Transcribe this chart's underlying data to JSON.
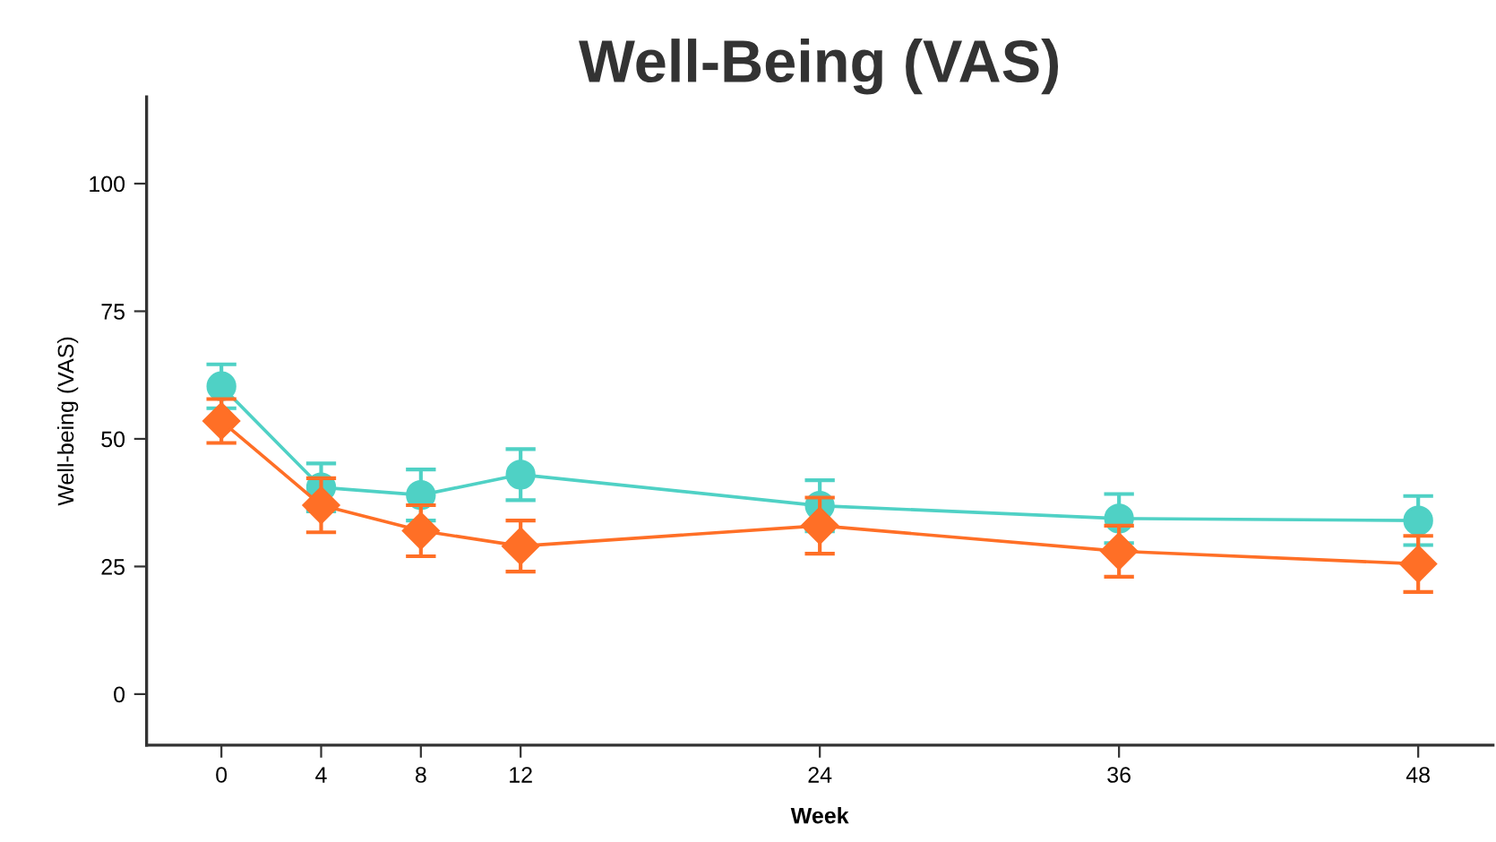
{
  "chart_data": {
    "type": "line",
    "title": "Well-Being (VAS)",
    "xlabel": "Week",
    "ylabel": "Well-being (VAS)",
    "x": [
      0,
      4,
      8,
      12,
      24,
      36,
      48
    ],
    "xlim": [
      -3,
      51
    ],
    "xticks": [
      0,
      4,
      8,
      12,
      24,
      36,
      48
    ],
    "ylim": [
      -10,
      117
    ],
    "yticks": [
      0,
      25,
      50,
      75,
      100
    ],
    "grid": false,
    "legend": false,
    "series": [
      {
        "color": "#4fd1c5",
        "marker": "circle",
        "values": [
          60.3,
          40.5,
          39,
          43,
          36.9,
          34.4,
          34
        ],
        "errors": [
          4.3,
          4.7,
          5,
          5,
          5,
          4.8,
          4.8
        ]
      },
      {
        "color": "#ff6f26",
        "marker": "diamond",
        "values": [
          53.5,
          37,
          32,
          29,
          33,
          28,
          25.5
        ],
        "errors": [
          4.3,
          5.3,
          5,
          5,
          5.5,
          5,
          5.5
        ]
      }
    ]
  }
}
